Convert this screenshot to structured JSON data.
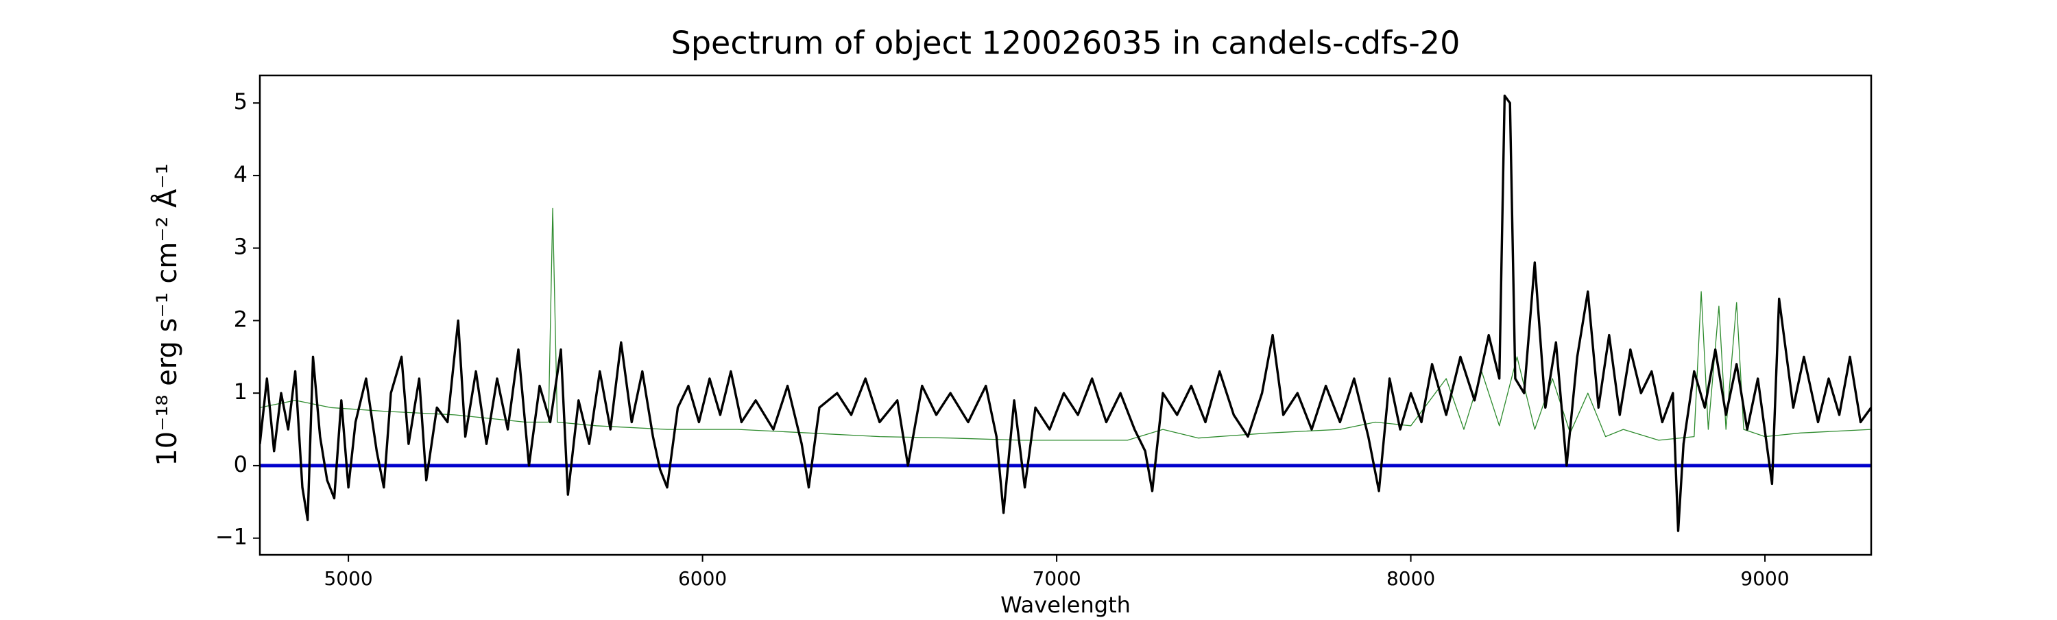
{
  "chart_data": {
    "type": "line",
    "title": "Spectrum of object 120026035 in candels-cdfs-20",
    "xlabel": "Wavelength",
    "ylabel": "10⁻¹⁸ erg s⁻¹ cm⁻² Å⁻¹",
    "xlim": [
      4750,
      9300
    ],
    "ylim": [
      -1.23,
      5.38
    ],
    "xticks": [
      5000,
      6000,
      7000,
      8000,
      9000
    ],
    "yticks": [
      {
        "value": -1,
        "label": "−1"
      },
      0,
      1,
      2,
      3,
      4,
      5
    ],
    "series": [
      {
        "color": "#2e8b2e",
        "width": 1.3,
        "x": [
          4750,
          4850,
          4950,
          5100,
          5300,
          5500,
          5565,
          5577,
          5590,
          5700,
          5900,
          6100,
          6300,
          6500,
          6700,
          6900,
          7000,
          7200,
          7300,
          7400,
          7600,
          7800,
          7900,
          8000,
          8100,
          8150,
          8200,
          8250,
          8300,
          8350,
          8400,
          8450,
          8500,
          8550,
          8600,
          8700,
          8800,
          8820,
          8840,
          8870,
          8890,
          8920,
          8940,
          9000,
          9100,
          9300
        ],
        "values": [
          0.8,
          0.9,
          0.8,
          0.75,
          0.7,
          0.6,
          0.6,
          3.55,
          0.6,
          0.55,
          0.5,
          0.5,
          0.45,
          0.4,
          0.38,
          0.35,
          0.35,
          0.35,
          0.5,
          0.38,
          0.45,
          0.5,
          0.6,
          0.55,
          1.2,
          0.5,
          1.3,
          0.55,
          1.5,
          0.5,
          1.2,
          0.45,
          1.0,
          0.4,
          0.5,
          0.35,
          0.4,
          2.4,
          0.5,
          2.2,
          0.5,
          2.25,
          0.5,
          0.4,
          0.45,
          0.5
        ]
      },
      {
        "color": "#0000cc",
        "width": 5,
        "x": [
          4750,
          9300
        ],
        "values": [
          0,
          0
        ]
      },
      {
        "color": "#000000",
        "width": 3.4,
        "x": [
          4750,
          4770,
          4790,
          4810,
          4830,
          4850,
          4870,
          4885,
          4900,
          4920,
          4940,
          4960,
          4980,
          5000,
          5020,
          5050,
          5080,
          5100,
          5120,
          5150,
          5170,
          5200,
          5220,
          5250,
          5280,
          5310,
          5330,
          5360,
          5390,
          5420,
          5450,
          5480,
          5510,
          5540,
          5570,
          5600,
          5620,
          5650,
          5680,
          5710,
          5740,
          5770,
          5800,
          5830,
          5860,
          5880,
          5900,
          5930,
          5960,
          5990,
          6020,
          6050,
          6080,
          6110,
          6150,
          6200,
          6240,
          6280,
          6300,
          6330,
          6380,
          6420,
          6460,
          6500,
          6550,
          6580,
          6620,
          6660,
          6700,
          6750,
          6800,
          6830,
          6850,
          6880,
          6910,
          6940,
          6980,
          7020,
          7060,
          7100,
          7140,
          7180,
          7220,
          7250,
          7270,
          7300,
          7340,
          7380,
          7420,
          7460,
          7500,
          7540,
          7580,
          7610,
          7640,
          7680,
          7720,
          7760,
          7800,
          7840,
          7880,
          7910,
          7940,
          7970,
          8000,
          8030,
          8060,
          8100,
          8140,
          8180,
          8220,
          8250,
          8265,
          8280,
          8295,
          8320,
          8350,
          8380,
          8410,
          8440,
          8470,
          8500,
          8530,
          8560,
          8590,
          8620,
          8650,
          8680,
          8710,
          8740,
          8755,
          8770,
          8800,
          8830,
          8860,
          8890,
          8920,
          8950,
          8980,
          9020,
          9040,
          9080,
          9110,
          9150,
          9180,
          9210,
          9240,
          9270,
          9300
        ],
        "values": [
          0.3,
          1.2,
          0.2,
          1.0,
          0.5,
          1.3,
          -0.3,
          -0.75,
          1.5,
          0.4,
          -0.2,
          -0.45,
          0.9,
          -0.3,
          0.6,
          1.2,
          0.2,
          -0.3,
          1.0,
          1.5,
          0.3,
          1.2,
          -0.2,
          0.8,
          0.6,
          2.0,
          0.4,
          1.3,
          0.3,
          1.2,
          0.5,
          1.6,
          0.0,
          1.1,
          0.6,
          1.6,
          -0.4,
          0.9,
          0.3,
          1.3,
          0.5,
          1.7,
          0.6,
          1.3,
          0.4,
          -0.05,
          -0.3,
          0.8,
          1.1,
          0.6,
          1.2,
          0.7,
          1.3,
          0.6,
          0.9,
          0.5,
          1.1,
          0.3,
          -0.3,
          0.8,
          1.0,
          0.7,
          1.2,
          0.6,
          0.9,
          0.0,
          1.1,
          0.7,
          1.0,
          0.6,
          1.1,
          0.4,
          -0.65,
          0.9,
          -0.3,
          0.8,
          0.5,
          1.0,
          0.7,
          1.2,
          0.6,
          1.0,
          0.5,
          0.2,
          -0.35,
          1.0,
          0.7,
          1.1,
          0.6,
          1.3,
          0.7,
          0.4,
          1.0,
          1.8,
          0.7,
          1.0,
          0.5,
          1.1,
          0.6,
          1.2,
          0.4,
          -0.35,
          1.2,
          0.5,
          1.0,
          0.6,
          1.4,
          0.7,
          1.5,
          0.9,
          1.8,
          1.2,
          5.1,
          5.0,
          1.2,
          1.0,
          2.8,
          0.8,
          1.7,
          0.0,
          1.5,
          2.4,
          0.8,
          1.8,
          0.7,
          1.6,
          1.0,
          1.3,
          0.6,
          1.0,
          -0.9,
          0.3,
          1.3,
          0.8,
          1.6,
          0.7,
          1.4,
          0.5,
          1.2,
          -0.25,
          2.3,
          0.8,
          1.5,
          0.6,
          1.2,
          0.7,
          1.5,
          0.6,
          0.8
        ]
      }
    ]
  }
}
